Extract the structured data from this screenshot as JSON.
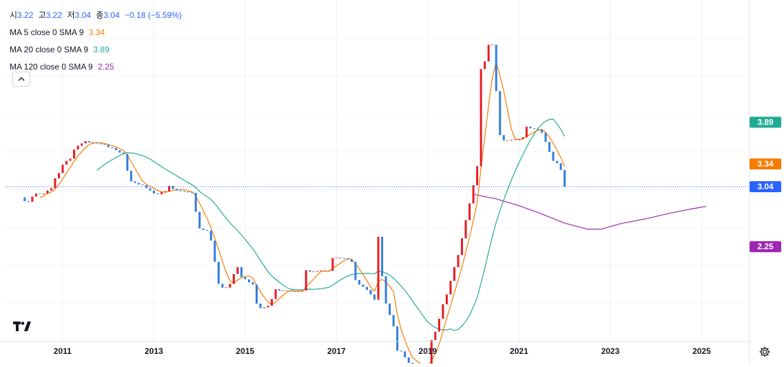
{
  "legend": {
    "ohlc": [
      {
        "key": "시",
        "value": "3.22"
      },
      {
        "key": "고",
        "value": "3.22"
      },
      {
        "key": "저",
        "value": "3.04"
      },
      {
        "key": "종",
        "value": "3.04"
      }
    ],
    "change": "−0.18 (−5.59%)",
    "indicators": [
      {
        "label": "MA 5 close 0 SMA 9",
        "value": "3.34",
        "color": "#f57c00"
      },
      {
        "label": "MA 20 close 0 SMA 9",
        "value": "3.89",
        "color": "#22ab94"
      },
      {
        "label": "MA 120 close 0 SMA 9",
        "value": "2.25",
        "color": "#9c27b0"
      }
    ]
  },
  "chart_data": {
    "type": "candlestick",
    "x_ticks": [
      "2011",
      "2013",
      "2015",
      "2017",
      "2019",
      "2021",
      "2023",
      "2025"
    ],
    "x_ticks_t": [
      2011.0,
      2013.0,
      2015.0,
      2017.0,
      2019.0,
      2021.0,
      2023.0,
      2025.0
    ],
    "xlim": [
      2009.75,
      2026.05
    ],
    "ylim": [
      1.0,
      5.5
    ],
    "grid": true,
    "colors": {
      "up": "#e81b23",
      "down": "#2f7de1",
      "ma5": "#f57c00",
      "ma20": "#22ab94",
      "ma120": "#9c27b0",
      "last": "#2962ff"
    },
    "last_price": 3.04,
    "price_labels": [
      {
        "value": "3.89",
        "v": 3.89,
        "color": "#22ab94"
      },
      {
        "value": "3.34",
        "v": 3.34,
        "color": "#f57c00"
      },
      {
        "value": "3.04",
        "v": 3.04,
        "color": "#2962ff"
      },
      {
        "value": "2.25",
        "v": 2.25,
        "color": "#9c27b0"
      }
    ],
    "candles_t0": 2010.17,
    "candles_dt": 0.0833,
    "candle_close": [
      2.85,
      2.84,
      2.91,
      2.95,
      2.94,
      2.95,
      2.99,
      3.02,
      3.15,
      3.22,
      3.33,
      3.38,
      3.41,
      3.53,
      3.58,
      3.61,
      3.64,
      3.62,
      3.62,
      3.61,
      3.6,
      3.59,
      3.56,
      3.55,
      3.52,
      3.49,
      3.47,
      3.25,
      3.11,
      3.09,
      3.07,
      3.06,
      3.02,
      2.99,
      2.95,
      2.94,
      2.97,
      2.98,
      3.05,
      3.01,
      2.99,
      2.98,
      2.97,
      2.97,
      2.96,
      2.71,
      2.49,
      2.47,
      2.46,
      2.33,
      2.05,
      1.76,
      1.71,
      1.71,
      1.76,
      1.89,
      1.98,
      1.85,
      1.82,
      1.78,
      1.75,
      1.5,
      1.44,
      1.45,
      1.47,
      1.56,
      1.69,
      1.67,
      1.67,
      1.67,
      1.66,
      1.66,
      1.66,
      1.67,
      1.94,
      1.92,
      1.92,
      1.93,
      1.93,
      1.93,
      1.93,
      2.1,
      2.1,
      2.1,
      2.09,
      2.08,
      2.05,
      1.81,
      1.75,
      1.72,
      1.68,
      1.62,
      1.55,
      2.38,
      1.86,
      1.5,
      1.35,
      1.2,
      0.88,
      0.87,
      0.79,
      0.72,
      0.68,
      0.69,
      0.68,
      0.67,
      0.69,
      1.02,
      1.13,
      1.3,
      1.49,
      1.62,
      1.8,
      1.98,
      2.14,
      2.36,
      2.6,
      2.82,
      3.06,
      3.31,
      4.59,
      4.69,
      4.91,
      4.91,
      4.3,
      3.72,
      3.65,
      3.65,
      3.66,
      3.66,
      3.67,
      3.69,
      3.83,
      3.81,
      3.8,
      3.79,
      3.75,
      3.63,
      3.5,
      3.38,
      3.35,
      3.26,
      3.04
    ]
  },
  "ui": {
    "gear_icon": "gear-icon",
    "collapse_icon": "chevron-up-icon",
    "logo": "tradingview-logo"
  }
}
